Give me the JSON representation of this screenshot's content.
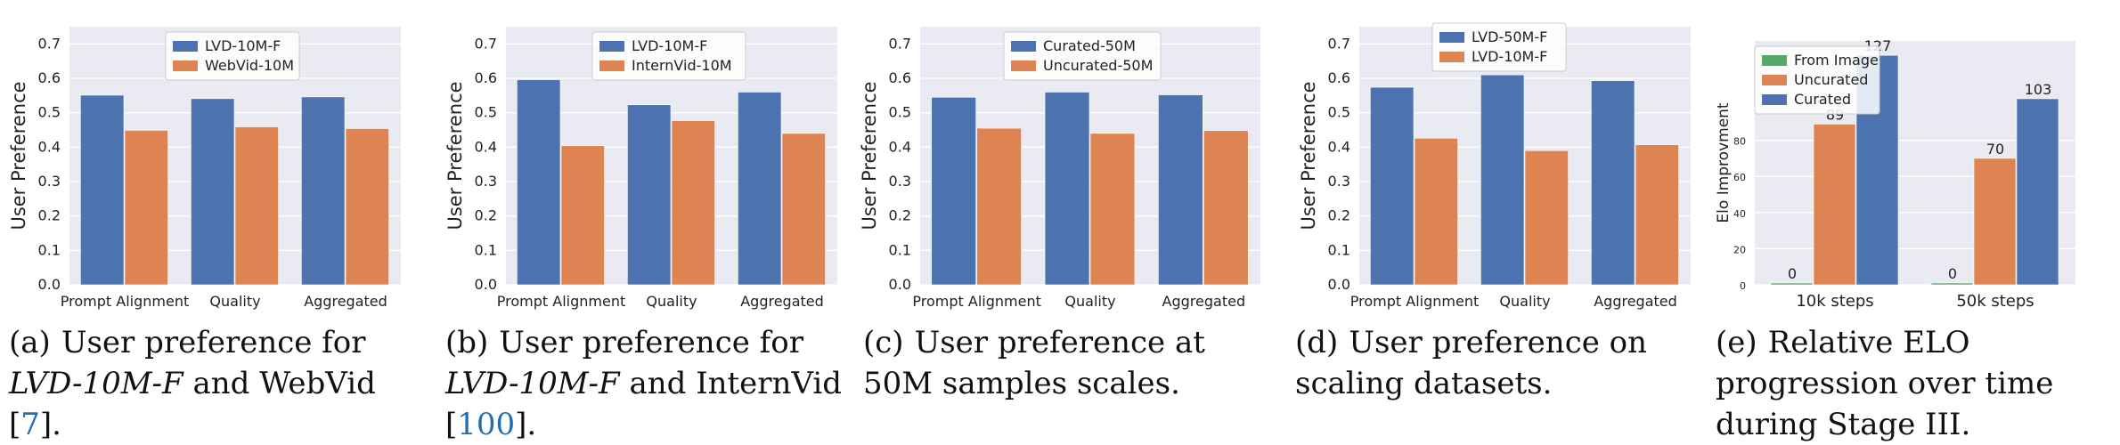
{
  "chart_data": [
    {
      "type": "bar",
      "categories": [
        "Prompt Alignment",
        "Quality",
        "Aggregated"
      ],
      "series": [
        {
          "name": "LVD-10M-F",
          "values": [
            0.551,
            0.541,
            0.546
          ]
        },
        {
          "name": "WebVid-10M",
          "values": [
            0.449,
            0.459,
            0.454
          ]
        }
      ],
      "ylabel": "User Preference",
      "yticks": [
        "0.0",
        "0.1",
        "0.2",
        "0.3",
        "0.4",
        "0.5",
        "0.6",
        "0.7"
      ],
      "ylim": [
        0,
        0.75
      ],
      "grid": true,
      "legend_position": "top-center",
      "caption": {
        "label": "(a)",
        "parts": [
          {
            "text": "User preference for ",
            "style": "normal"
          },
          {
            "text": "LVD-10M-F",
            "style": "italic"
          },
          {
            "text": " and WebVid [",
            "style": "normal"
          },
          {
            "text": "7",
            "style": "cite"
          },
          {
            "text": "].",
            "style": "normal"
          }
        ]
      }
    },
    {
      "type": "bar",
      "categories": [
        "Prompt Alignment",
        "Quality",
        "Aggregated"
      ],
      "series": [
        {
          "name": "LVD-10M-F",
          "values": [
            0.596,
            0.523,
            0.56
          ]
        },
        {
          "name": "InternVid-10M",
          "values": [
            0.404,
            0.477,
            0.44
          ]
        }
      ],
      "ylabel": "User Preference",
      "yticks": [
        "0.0",
        "0.1",
        "0.2",
        "0.3",
        "0.4",
        "0.5",
        "0.6",
        "0.7"
      ],
      "ylim": [
        0,
        0.75
      ],
      "grid": true,
      "legend_position": "top-center",
      "caption": {
        "label": "(b)",
        "parts": [
          {
            "text": "User preference for ",
            "style": "normal"
          },
          {
            "text": "LVD-10M-F",
            "style": "italic"
          },
          {
            "text": " and InternVid [",
            "style": "normal"
          },
          {
            "text": "100",
            "style": "cite"
          },
          {
            "text": "].",
            "style": "normal"
          }
        ]
      }
    },
    {
      "type": "bar",
      "categories": [
        "Prompt Alignment",
        "Quality",
        "Aggregated"
      ],
      "series": [
        {
          "name": "Curated-50M",
          "values": [
            0.545,
            0.56,
            0.552
          ]
        },
        {
          "name": "Uncurated-50M",
          "values": [
            0.455,
            0.44,
            0.448
          ]
        }
      ],
      "ylabel": "User Preference",
      "yticks": [
        "0.0",
        "0.1",
        "0.2",
        "0.3",
        "0.4",
        "0.5",
        "0.6",
        "0.7"
      ],
      "ylim": [
        0,
        0.75
      ],
      "grid": true,
      "legend_position": "top-center",
      "caption": {
        "label": "(c)",
        "parts": [
          {
            "text": "User preference at 50M samples scales.",
            "style": "normal"
          }
        ]
      }
    },
    {
      "type": "bar",
      "categories": [
        "Prompt Alignment",
        "Quality",
        "Aggregated"
      ],
      "series": [
        {
          "name": "LVD-50M-F",
          "values": [
            0.574,
            0.61,
            0.593
          ]
        },
        {
          "name": "LVD-10M-F",
          "values": [
            0.426,
            0.39,
            0.407
          ]
        }
      ],
      "ylabel": "User Preference",
      "yticks": [
        "0.0",
        "0.1",
        "0.2",
        "0.3",
        "0.4",
        "0.5",
        "0.6",
        "0.7"
      ],
      "ylim": [
        0,
        0.75
      ],
      "grid": true,
      "legend_position": "top-center",
      "caption": {
        "label": "(d)",
        "parts": [
          {
            "text": "User preference on scaling datasets.",
            "style": "normal"
          }
        ]
      }
    },
    {
      "type": "bar",
      "categories": [
        "10k steps",
        "50k steps"
      ],
      "series": [
        {
          "name": "From Image",
          "values": [
            0,
            0
          ]
        },
        {
          "name": "Uncurated",
          "values": [
            89,
            70
          ]
        },
        {
          "name": "Curated",
          "values": [
            127,
            103
          ]
        }
      ],
      "data_labels": true,
      "ylabel": "Elo Improvment",
      "yticks": [
        "0",
        "20",
        "40",
        "60",
        "80"
      ],
      "ylim": [
        0,
        135
      ],
      "grid": true,
      "legend_position": "top-left",
      "caption": {
        "label": "(e)",
        "parts": [
          {
            "text": "Relative ELO progression over time during Stage III.",
            "style": "normal"
          }
        ]
      }
    }
  ],
  "colors": {
    "blue": "#4c72b0",
    "orange": "#dd8452",
    "green": "#55a868",
    "grid_bg": "#eaeaf2"
  }
}
